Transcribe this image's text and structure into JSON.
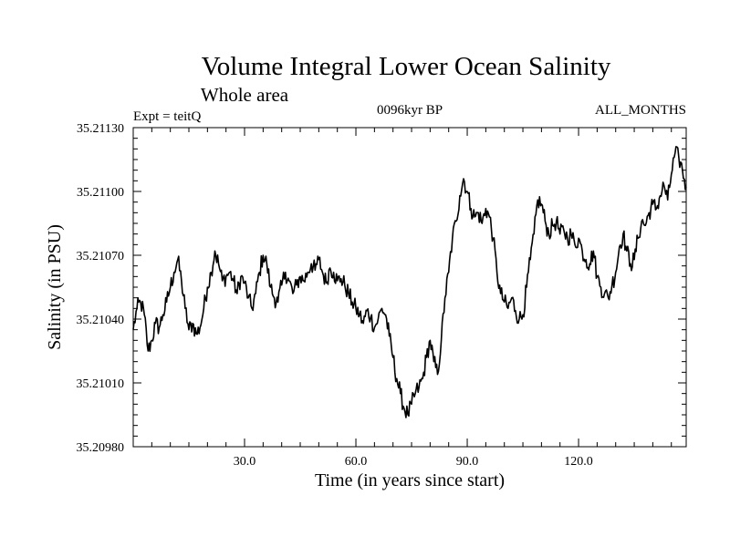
{
  "chart_data": {
    "type": "line",
    "title": "Volume Integral Lower Ocean Salinity",
    "subtitle": "Whole area",
    "experiment": "Expt = teitQ",
    "period": "0096kyr BP",
    "months": "ALL_MONTHS",
    "xlabel": "Time (in years since start)",
    "ylabel": "Salinity (in PSU)",
    "xlim": [
      0,
      149
    ],
    "ylim": [
      35.2098,
      35.2113
    ],
    "x_ticks": [
      30,
      60,
      90,
      120
    ],
    "x_tick_labels": [
      "30.0",
      "60.0",
      "90.0",
      "120.0"
    ],
    "y_ticks": [
      35.2098,
      35.2101,
      35.2104,
      35.2107,
      35.211,
      35.2113
    ],
    "y_tick_labels": [
      "35.20980",
      "35.21010",
      "35.21040",
      "35.21070",
      "35.21100",
      "35.21130"
    ],
    "grid": false,
    "series": [
      {
        "name": "salinity",
        "color": "#000000",
        "x": [
          0,
          1,
          2,
          3,
          4,
          5,
          6,
          7,
          8,
          9,
          10,
          11,
          12,
          13,
          14,
          15,
          16,
          17,
          18,
          19,
          20,
          21,
          22,
          23,
          24,
          25,
          26,
          27,
          28,
          29,
          30,
          31,
          32,
          33,
          34,
          35,
          36,
          37,
          38,
          39,
          40,
          41,
          42,
          43,
          44,
          45,
          46,
          47,
          48,
          49,
          50,
          51,
          52,
          53,
          54,
          55,
          56,
          57,
          58,
          59,
          60,
          61,
          62,
          63,
          64,
          65,
          66,
          67,
          68,
          69,
          70,
          71,
          72,
          73,
          74,
          75,
          76,
          77,
          78,
          79,
          80,
          81,
          82,
          83,
          84,
          85,
          86,
          87,
          88,
          89,
          90,
          91,
          92,
          93,
          94,
          95,
          96,
          97,
          98,
          99,
          100,
          101,
          102,
          103,
          104,
          105,
          106,
          107,
          108,
          109,
          110,
          111,
          112,
          113,
          114,
          115,
          116,
          117,
          118,
          119,
          120,
          121,
          122,
          123,
          124,
          125,
          126,
          127,
          128,
          129,
          130,
          131,
          132,
          133,
          134,
          135,
          136,
          137,
          138,
          139,
          140,
          141,
          142,
          143,
          144,
          145,
          146,
          147,
          148,
          149
        ],
        "values": [
          35.21035,
          35.21045,
          35.21048,
          35.21042,
          35.21025,
          35.2103,
          35.21038,
          35.21036,
          35.21042,
          35.21048,
          35.21055,
          35.21062,
          35.21068,
          35.21058,
          35.21045,
          35.21035,
          35.21038,
          35.21033,
          35.21036,
          35.21045,
          35.21055,
          35.21062,
          35.21072,
          35.21066,
          35.21058,
          35.2106,
          35.21062,
          35.21058,
          35.21052,
          35.2106,
          35.21057,
          35.2105,
          35.21045,
          35.21052,
          35.21062,
          35.2107,
          35.21066,
          35.21055,
          35.2105,
          35.21048,
          35.21056,
          35.21062,
          35.21058,
          35.21052,
          35.21056,
          35.2106,
          35.21058,
          35.21062,
          35.21066,
          35.21063,
          35.21068,
          35.21062,
          35.21057,
          35.21064,
          35.21062,
          35.21058,
          35.21059,
          35.21056,
          35.21052,
          35.21048,
          35.21045,
          35.21042,
          35.21038,
          35.21044,
          35.21041,
          35.21036,
          35.2104,
          35.21045,
          35.21042,
          35.21032,
          35.21022,
          35.21012,
          35.21005,
          35.20998,
          35.20995,
          35.21,
          35.21005,
          35.21008,
          35.21012,
          35.21022,
          35.2103,
          35.2102,
          35.21014,
          35.2103,
          35.2105,
          35.21062,
          35.21078,
          35.21086,
          35.21098,
          35.21106,
          35.211,
          35.21092,
          35.21088,
          35.2109,
          35.21085,
          35.21092,
          35.21088,
          35.21078,
          35.21062,
          35.21052,
          35.21048,
          35.21045,
          35.2105,
          35.21044,
          35.2104,
          35.21042,
          35.21055,
          35.21068,
          35.2108,
          35.21096,
          35.21094,
          35.21086,
          35.2108,
          35.21084,
          35.21086,
          35.2108,
          35.21082,
          35.21078,
          35.2108,
          35.21075,
          35.21078,
          35.21072,
          35.21068,
          35.21066,
          35.21072,
          35.2106,
          35.21055,
          35.21052,
          35.2105,
          35.21056,
          35.21062,
          35.21074,
          35.2108,
          35.21072,
          35.21066,
          35.21068,
          35.21078,
          35.21086,
          35.21084,
          35.2109,
          35.21094,
          35.21092,
          35.21098,
          35.21103,
          35.21096,
          35.21108,
          35.21118,
          35.21116,
          35.2111,
          35.21102
        ]
      }
    ]
  }
}
